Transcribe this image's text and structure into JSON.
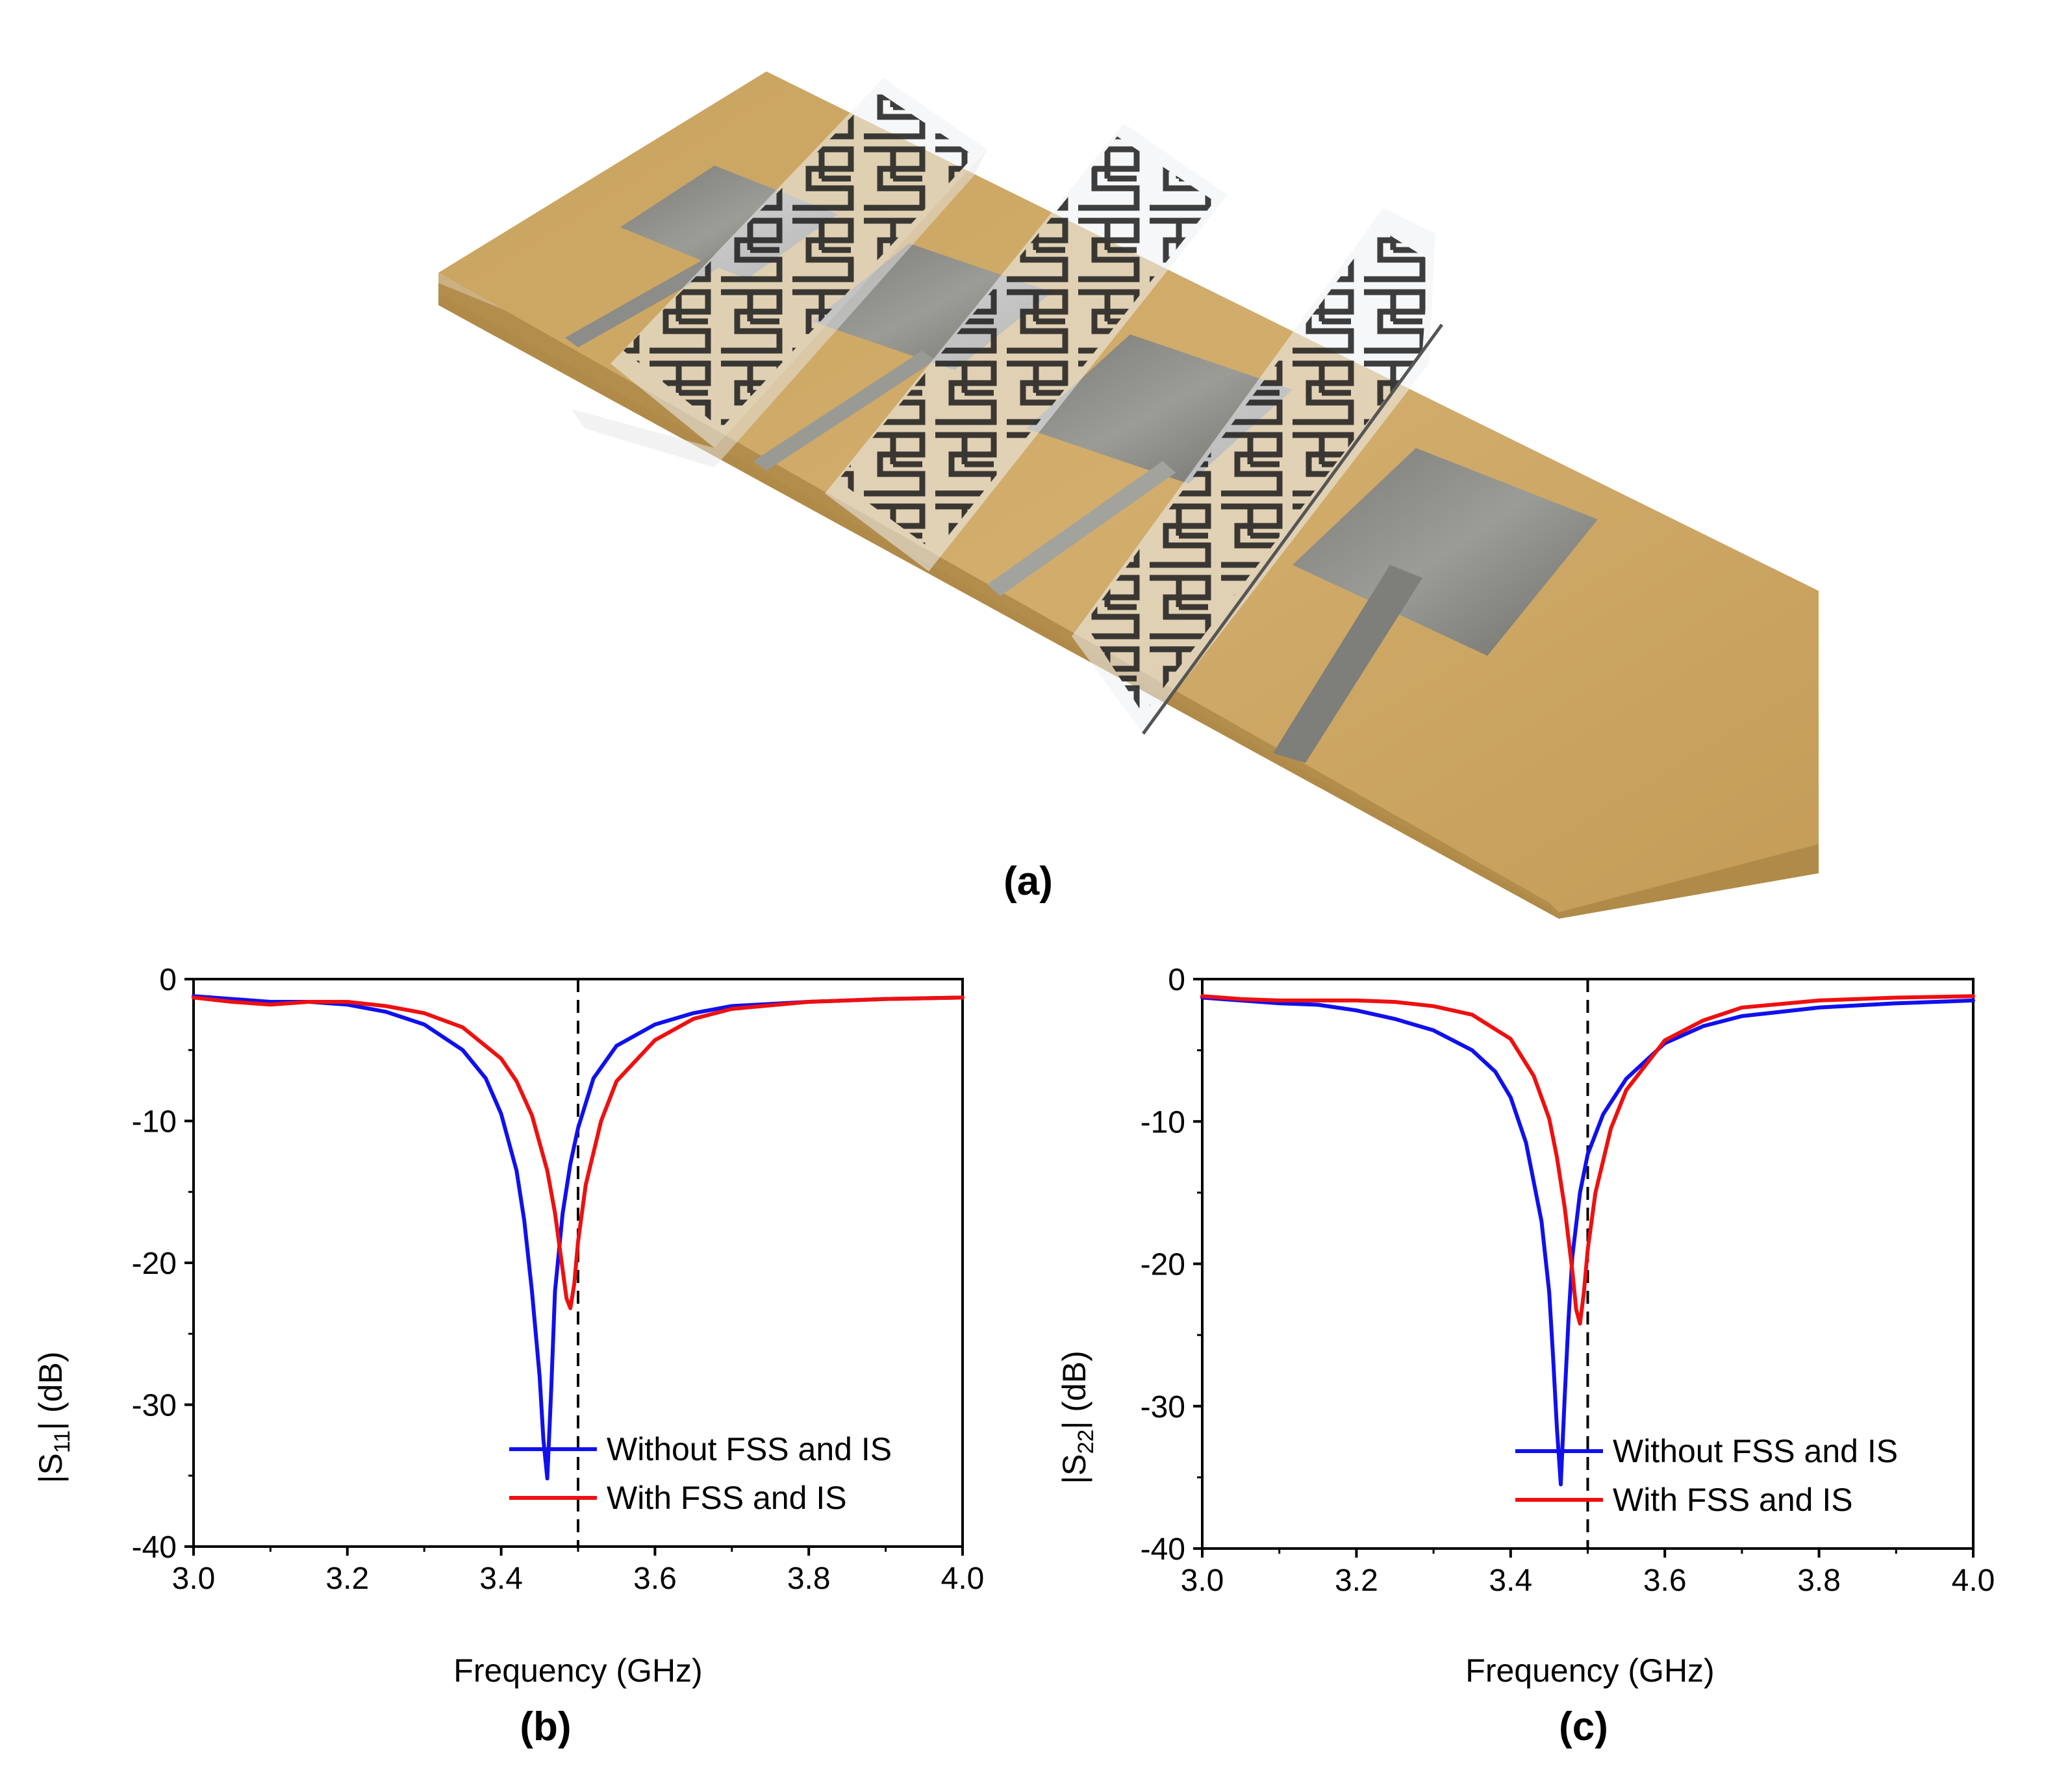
{
  "photo": {
    "label": "(a)",
    "board_color": "#c7a463",
    "patch_color": "#8a8a86",
    "film_ink": "#1c1c1c"
  },
  "chart_data": [
    {
      "id": "b",
      "type": "line",
      "panel_label": "(b)",
      "xlabel": "Frequency (GHz)",
      "ylabel_main": "|S",
      "ylabel_sub": "11",
      "ylabel_tail": "| (dB)",
      "xlim": [
        3.0,
        4.0
      ],
      "ylim": [
        -40,
        0
      ],
      "xticks": [
        "3.0",
        "3.2",
        "3.4",
        "3.6",
        "3.8",
        "4.0"
      ],
      "yticks": [
        "0",
        "-10",
        "-20",
        "-30",
        "-40"
      ],
      "vline_x": 3.5,
      "legend_position": "bottom-right",
      "series": [
        {
          "name": "Without FSS and IS",
          "color": "#1010ee",
          "x": [
            3.0,
            3.05,
            3.1,
            3.15,
            3.2,
            3.25,
            3.3,
            3.35,
            3.38,
            3.4,
            3.42,
            3.43,
            3.44,
            3.45,
            3.455,
            3.46,
            3.465,
            3.47,
            3.48,
            3.49,
            3.5,
            3.52,
            3.55,
            3.6,
            3.65,
            3.7,
            3.8,
            3.9,
            4.0
          ],
          "y": [
            -1.2,
            -1.4,
            -1.6,
            -1.6,
            -1.8,
            -2.3,
            -3.2,
            -5.0,
            -7.0,
            -9.5,
            -13.5,
            -17.0,
            -22.0,
            -28.0,
            -32.5,
            -35.2,
            -29.0,
            -22.0,
            -16.5,
            -13.0,
            -10.5,
            -7.0,
            -4.7,
            -3.2,
            -2.4,
            -1.9,
            -1.6,
            -1.4,
            -1.3
          ]
        },
        {
          "name": "With FSS and IS",
          "color": "#ee1010",
          "x": [
            3.0,
            3.05,
            3.1,
            3.15,
            3.2,
            3.25,
            3.3,
            3.35,
            3.4,
            3.42,
            3.44,
            3.46,
            3.47,
            3.48,
            3.485,
            3.49,
            3.495,
            3.5,
            3.51,
            3.53,
            3.55,
            3.6,
            3.65,
            3.7,
            3.8,
            3.9,
            4.0
          ],
          "y": [
            -1.3,
            -1.6,
            -1.8,
            -1.6,
            -1.6,
            -1.9,
            -2.4,
            -3.4,
            -5.6,
            -7.2,
            -9.6,
            -13.5,
            -16.5,
            -20.5,
            -22.5,
            -23.2,
            -21.5,
            -18.5,
            -14.5,
            -10.0,
            -7.2,
            -4.3,
            -2.8,
            -2.1,
            -1.6,
            -1.4,
            -1.3
          ]
        }
      ]
    },
    {
      "id": "c",
      "type": "line",
      "panel_label": "(c)",
      "xlabel": "Frequency (GHz)",
      "ylabel_main": "|S",
      "ylabel_sub": "22",
      "ylabel_tail": "| (dB)",
      "xlim": [
        3.0,
        4.0
      ],
      "ylim": [
        -40,
        0
      ],
      "xticks": [
        "3.0",
        "3.2",
        "3.4",
        "3.6",
        "3.8",
        "4.0"
      ],
      "yticks": [
        "0",
        "-10",
        "-20",
        "-30",
        "-40"
      ],
      "vline_x": 3.5,
      "legend_position": "bottom-right",
      "series": [
        {
          "name": "Without FSS and IS",
          "color": "#1010ee",
          "x": [
            3.0,
            3.05,
            3.1,
            3.15,
            3.2,
            3.25,
            3.3,
            3.35,
            3.38,
            3.4,
            3.42,
            3.44,
            3.45,
            3.455,
            3.46,
            3.465,
            3.47,
            3.475,
            3.48,
            3.49,
            3.5,
            3.52,
            3.55,
            3.6,
            3.65,
            3.7,
            3.8,
            3.9,
            4.0
          ],
          "y": [
            -1.3,
            -1.5,
            -1.7,
            -1.8,
            -2.2,
            -2.8,
            -3.6,
            -5.0,
            -6.5,
            -8.3,
            -11.5,
            -17.0,
            -22.0,
            -26.5,
            -31.5,
            -35.5,
            -29.5,
            -24.0,
            -19.5,
            -15.0,
            -12.3,
            -9.5,
            -7.0,
            -4.5,
            -3.3,
            -2.6,
            -2.0,
            -1.7,
            -1.5
          ]
        },
        {
          "name": "With FSS and IS",
          "color": "#ee1010",
          "x": [
            3.0,
            3.05,
            3.1,
            3.15,
            3.2,
            3.25,
            3.3,
            3.35,
            3.4,
            3.43,
            3.45,
            3.46,
            3.47,
            3.48,
            3.485,
            3.49,
            3.495,
            3.5,
            3.51,
            3.53,
            3.55,
            3.6,
            3.65,
            3.7,
            3.8,
            3.9,
            4.0
          ],
          "y": [
            -1.2,
            -1.4,
            -1.5,
            -1.5,
            -1.5,
            -1.6,
            -1.9,
            -2.5,
            -4.2,
            -6.8,
            -9.8,
            -12.5,
            -16.0,
            -20.5,
            -23.2,
            -24.2,
            -22.0,
            -19.0,
            -15.0,
            -10.5,
            -7.8,
            -4.3,
            -2.9,
            -2.0,
            -1.5,
            -1.3,
            -1.2
          ]
        }
      ]
    }
  ]
}
